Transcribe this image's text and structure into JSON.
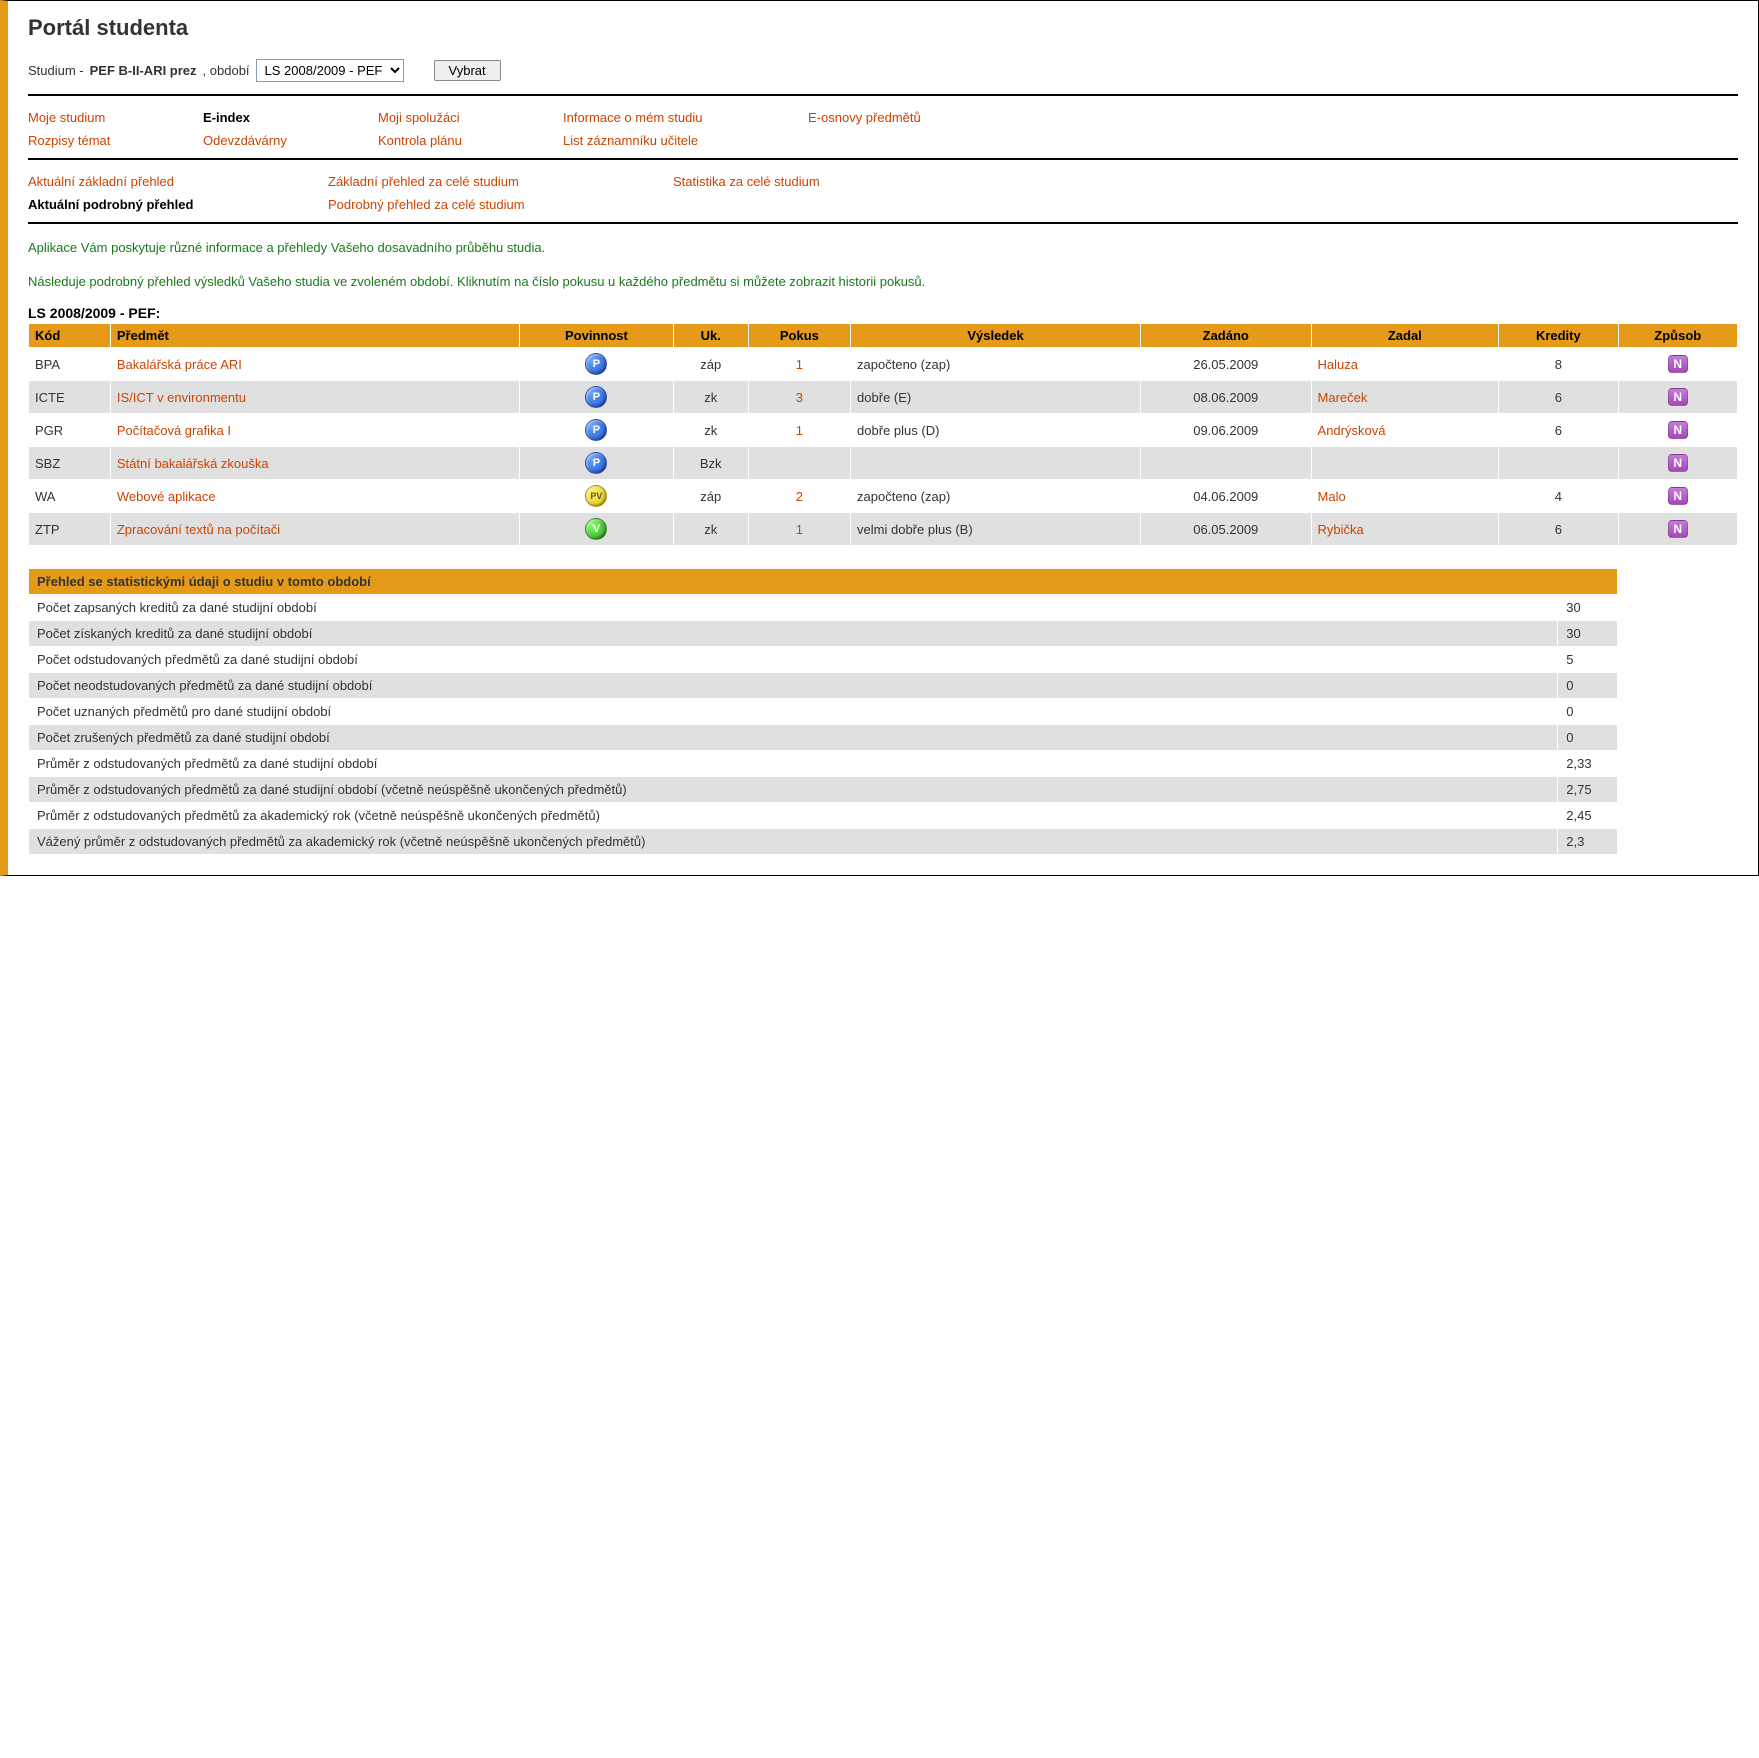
{
  "page_title": "Portál studenta",
  "study_label_prefix": "Studium - ",
  "study_program": "PEF B-II-ARI prez",
  "study_label_mid": ", období",
  "period_select_value": "LS 2008/2009 - PEF",
  "select_button": "Vybrat",
  "nav1": {
    "row1": [
      {
        "label": "Moje studium",
        "active": false
      },
      {
        "label": "E-index",
        "active": true
      },
      {
        "label": "Moji spolužáci",
        "active": false
      },
      {
        "label": "Informace o mém studiu",
        "active": false
      },
      {
        "label": "E-osnovy předmětů",
        "active": false
      }
    ],
    "row2": [
      {
        "label": "Rozpisy témat",
        "active": false
      },
      {
        "label": "Odevzdávárny",
        "active": false
      },
      {
        "label": "Kontrola plánu",
        "active": false
      },
      {
        "label": "List záznamníku učitele",
        "active": false
      }
    ]
  },
  "nav2": {
    "row1": [
      {
        "label": "Aktuální základní přehled",
        "active": false
      },
      {
        "label": "Základní přehled za celé studium",
        "active": false
      },
      {
        "label": "Statistika za celé studium",
        "active": false
      }
    ],
    "row2": [
      {
        "label": "Aktuální podrobný přehled",
        "active": true
      },
      {
        "label": "Podrobný přehled za celé studium",
        "active": false
      }
    ]
  },
  "intro1": "Aplikace Vám poskytuje různé informace a přehledy Vašeho dosavadního průběhu studia.",
  "intro2": "Následuje podrobný přehled výsledků Vašeho studia ve zvoleném období. Kliknutím na číslo pokusu u každého předmětu si můžete zobrazit historii pokusů.",
  "period_title": "LS 2008/2009 - PEF:",
  "results": {
    "headers": [
      "Kód",
      "Předmět",
      "Povinnost",
      "Uk.",
      "Pokus",
      "Výsledek",
      "Zadáno",
      "Zadal",
      "Kredity",
      "Způsob"
    ],
    "rows": [
      {
        "kod": "BPA",
        "predmet": "Bakalářská práce ARI",
        "pov": "P",
        "uk": "záp",
        "pokus": "1",
        "vysledek": "započteno (zap)",
        "zadano": "26.05.2009",
        "zadal": "Haluza",
        "kredity": "8",
        "zpusob": "N"
      },
      {
        "kod": "ICTE",
        "predmet": "IS/ICT v environmentu",
        "pov": "P",
        "uk": "zk",
        "pokus": "3",
        "vysledek": "dobře (E)",
        "zadano": "08.06.2009",
        "zadal": "Mareček",
        "kredity": "6",
        "zpusob": "N"
      },
      {
        "kod": "PGR",
        "predmet": "Počítačová grafika I",
        "pov": "P",
        "uk": "zk",
        "pokus": "1",
        "vysledek": "dobře plus (D)",
        "zadano": "09.06.2009",
        "zadal": "Andrýsková",
        "kredity": "6",
        "zpusob": "N"
      },
      {
        "kod": "SBZ",
        "predmet": "Státní bakalářská zkouška",
        "pov": "P",
        "uk": "Bzk",
        "pokus": "",
        "vysledek": "",
        "zadano": "",
        "zadal": "",
        "kredity": "",
        "zpusob": "N"
      },
      {
        "kod": "WA",
        "predmet": "Webové aplikace",
        "pov": "PV",
        "uk": "záp",
        "pokus": "2",
        "vysledek": "započteno (zap)",
        "zadano": "04.06.2009",
        "zadal": "Malo",
        "kredity": "4",
        "zpusob": "N"
      },
      {
        "kod": "ZTP",
        "predmet": "Zpracování textů na počítači",
        "pov": "V",
        "uk": "zk",
        "pokus": "1",
        "vysledek": "velmi dobře plus (B)",
        "zadano": "06.05.2009",
        "zadal": "Rybička",
        "kredity": "6",
        "zpusob": "N"
      }
    ]
  },
  "stats": {
    "header": "Přehled se statistickými údaji o studiu v tomto období",
    "rows": [
      {
        "label": "Počet zapsaných kreditů za dané studijní období",
        "value": "30"
      },
      {
        "label": "Počet získaných kreditů za dané studijní období",
        "value": "30"
      },
      {
        "label": "Počet odstudovaných předmětů za dané studijní období",
        "value": "5"
      },
      {
        "label": "Počet neodstudovaných předmětů za dané studijní období",
        "value": "0"
      },
      {
        "label": "Počet uznaných předmětů pro dané studijní období",
        "value": "0"
      },
      {
        "label": "Počet zrušených předmětů za dané studijní období",
        "value": "0"
      },
      {
        "label": "Průměr z odstudovaných předmětů za dané studijní období",
        "value": "2,33"
      },
      {
        "label": "Průměr z odstudovaných předmětů za dané studijní období (včetně neúspěšně ukončených předmětů)",
        "value": "2,75"
      },
      {
        "label": "Průměr z odstudovaných předmětů za akademický rok (včetně neúspěšně ukončených předmětů)",
        "value": "2,45"
      },
      {
        "label": "Vážený průměr z odstudovaných předmětů za akademický rok (včetně neúspěšně ukončených předmětů)",
        "value": "2,3"
      }
    ]
  },
  "colors": {
    "header_bg": "#e59a1a",
    "link": "#cc4400",
    "alt_row": "#e0e0e0",
    "green_text": "#1a7a1a",
    "badge_p": "#1a4fcf",
    "badge_pv": "#e0c400",
    "badge_v": "#1aa01a",
    "badge_n": "#a349b8"
  }
}
